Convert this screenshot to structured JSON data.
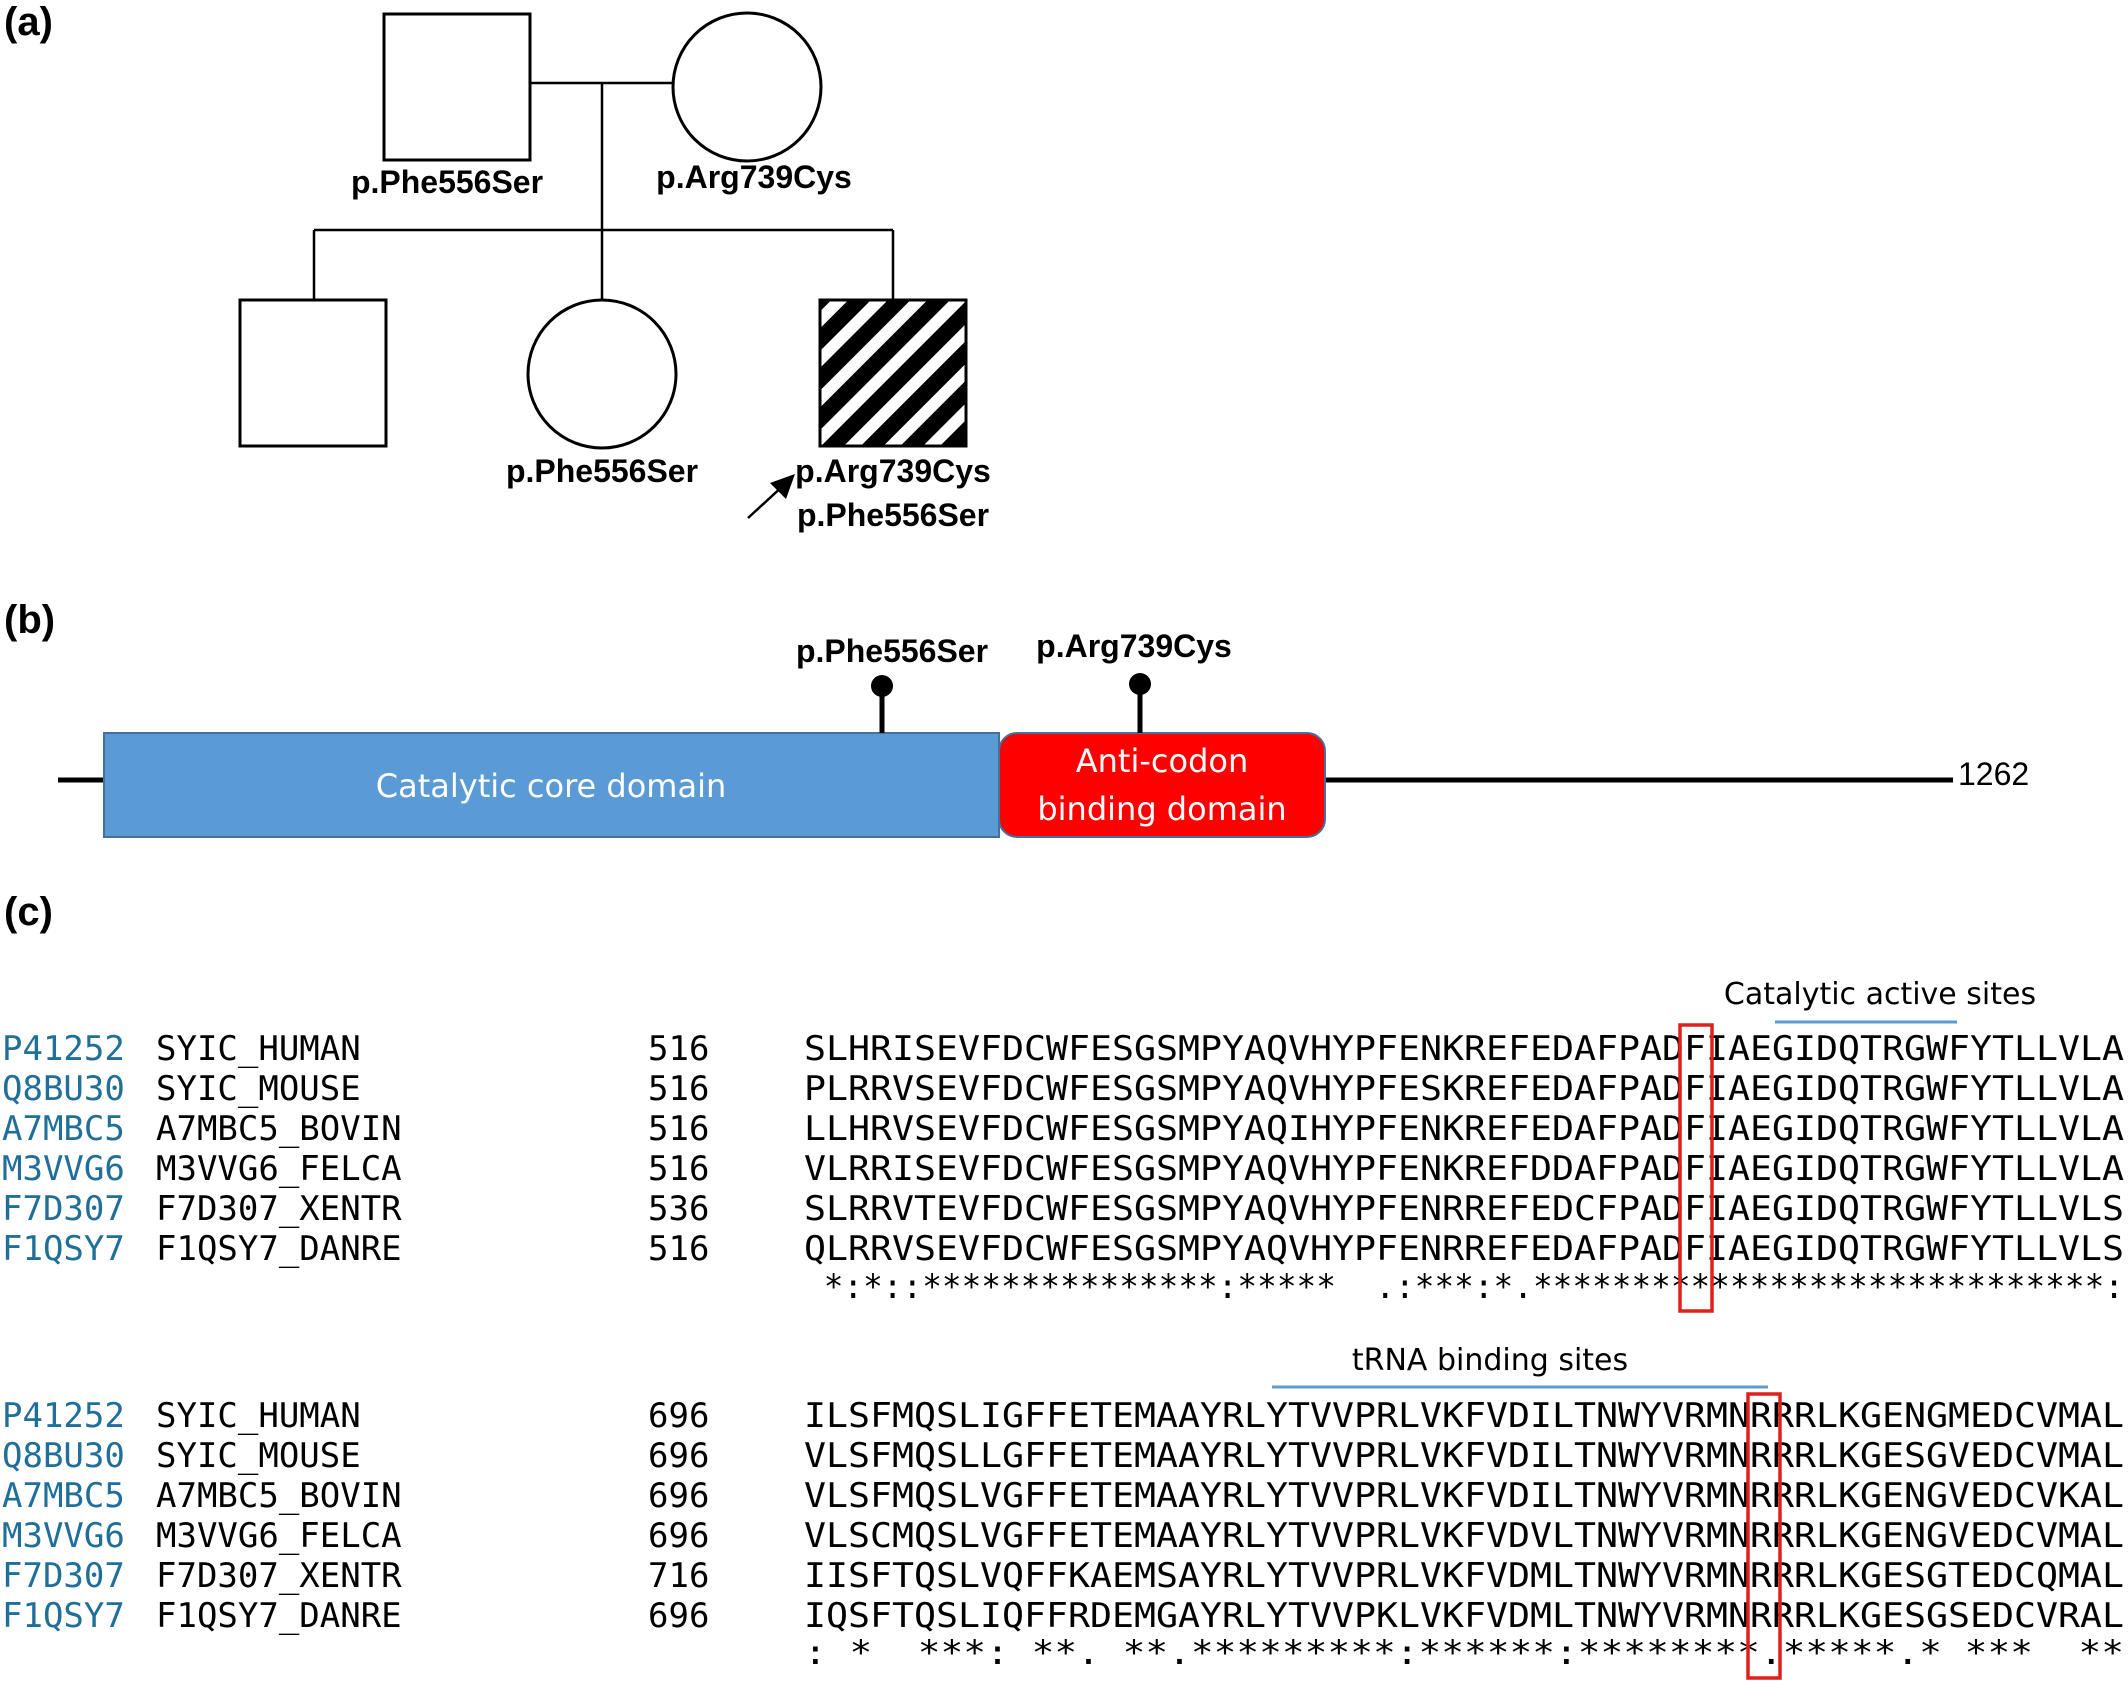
{
  "panels": {
    "a": "(a)",
    "b": "(b)",
    "c": "(c)"
  },
  "pedigree": {
    "father": {
      "mutation": "p.Phe556Ser"
    },
    "mother": {
      "mutation": "p.Arg739Cys"
    },
    "children": [
      {
        "sex": "male",
        "affected": false,
        "mutations": []
      },
      {
        "sex": "female",
        "affected": false,
        "mutations": [
          "p.Phe556Ser"
        ]
      },
      {
        "sex": "male",
        "affected": true,
        "proband": true,
        "mutations": [
          "p.Arg739Cys",
          "p.Phe556Ser"
        ]
      }
    ]
  },
  "protein": {
    "length_label": "1262",
    "domains": [
      {
        "name": "Catalytic core domain",
        "color": "#5b9bd5"
      },
      {
        "name_line1": "Anti-codon",
        "name_line2": "binding domain",
        "color": "#ff0000"
      }
    ],
    "mutations": [
      "p.Phe556Ser",
      "p.Arg739Cys"
    ]
  },
  "alignment": {
    "accession_color": "#1f6f9a",
    "highlight_color": "#e0201b",
    "site_bar_color": "#5b9bd5",
    "block1": {
      "site_label": "Catalytic active sites",
      "rows": [
        {
          "acc": "P41252",
          "name": "SYIC_HUMAN",
          "start": "516",
          "seq": "SLHRISEVFDCWFESGSMPYAQVHYPFENKREFEDAFPADFIAEGIDQTRGWFYTLLVLA"
        },
        {
          "acc": "Q8BU30",
          "name": "SYIC_MOUSE",
          "start": "516",
          "seq": "PLRRVSEVFDCWFESGSMPYAQVHYPFESKREFEDAFPADFIAEGIDQTRGWFYTLLVLA"
        },
        {
          "acc": "A7MBC5",
          "name": "A7MBC5_BOVIN",
          "start": "516",
          "seq": "LLHRVSEVFDCWFESGSMPYAQIHYPFENKREFEDAFPADFIAEGIDQTRGWFYTLLVLA"
        },
        {
          "acc": "M3VVG6",
          "name": "M3VVG6_FELCA",
          "start": "516",
          "seq": "VLRRISEVFDCWFESGSMPYAQVHYPFENKREFDDAFPADFIAEGIDQTRGWFYTLLVLA"
        },
        {
          "acc": "F7D307",
          "name": "F7D307_XENTR",
          "start": "536",
          "seq": "SLRRVTEVFDCWFESGSMPYAQVHYPFENRREFEDCFPADFIAEGIDQTRGWFYTLLVLS"
        },
        {
          "acc": "F1QSY7",
          "name": "F1QSY7_DANRE",
          "start": "516",
          "seq": "QLRRVSEVFDCWFESGSMPYAQVHYPFENRREFEDAFPADFIAEGIDQTRGWFYTLLVLS"
        }
      ],
      "consensus": " *:*::***************:*****  .:***:*.*****************************:"
    },
    "block2": {
      "site_label": "tRNA binding sites",
      "rows": [
        {
          "acc": "P41252",
          "name": "SYIC_HUMAN",
          "start": "696",
          "seq": "ILSFMQSLIGFFETEMAAYRLYTVVPRLVKFVDILTNWYVRMNRRRLKGENGMEDCVMAL"
        },
        {
          "acc": "Q8BU30",
          "name": "SYIC_MOUSE",
          "start": "696",
          "seq": "VLSFMQSLLGFFETEMAAYRLYTVVPRLVKFVDILTNWYVRMNRRRLKGESGVEDCVMAL"
        },
        {
          "acc": "A7MBC5",
          "name": "A7MBC5_BOVIN",
          "start": "696",
          "seq": "VLSFMQSLVGFFETEMAAYRLYTVVPRLVKFVDILTNWYVRMNRRRLKGENGVEDCVKAL"
        },
        {
          "acc": "M3VVG6",
          "name": "M3VVG6_FELCA",
          "start": "696",
          "seq": "VLSCMQSLVGFFETEMAAYRLYTVVPRLVKFVDVLTNWYVRMNRRRLKGENGVEDCVMAL"
        },
        {
          "acc": "F7D307",
          "name": "F7D307_XENTR",
          "start": "716",
          "seq": "IISFTQSLVQFFKAEMSAYRLYTVVPRLVKFVDMLTNWYVRMNRRRLKGESGTEDCQMAL"
        },
        {
          "acc": "F1QSY7",
          "name": "F1QSY7_DANRE",
          "start": "696",
          "seq": "IQSFTQSLIQFFRDEMGAYRLYTVVPKLVKFVDMLTNWYVRMNRRRLKGESGSEDCVRAL"
        }
      ],
      "consensus": ": *  ***: **. **.*********:******:********.*****.* ***  **"
    }
  }
}
